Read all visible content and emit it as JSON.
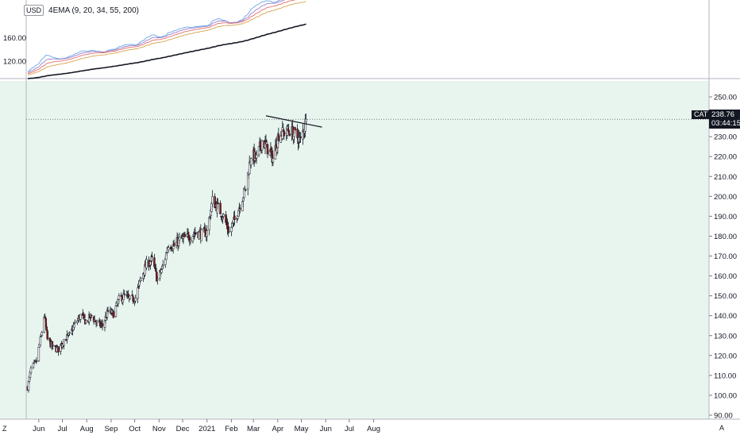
{
  "indicator": {
    "name": "4EMA (9, 20, 34, 55, 200)",
    "currency": "USD",
    "ticks": [
      120,
      160
    ],
    "range": [
      100,
      215
    ]
  },
  "price_tag": {
    "symbol": "CAT",
    "price": "238.76",
    "countdown": "03:44:15"
  },
  "corner_left": "Z",
  "corner_right": "A",
  "colors": {
    "bg_bottom": "#e8f5ef",
    "up_candle": "#ffffff",
    "down_candle": "#8e1b1b",
    "wick": "#131722",
    "ema_colors": [
      "#6aa7e8",
      "#9b7fc9",
      "#e06d6d",
      "#d7a14a",
      "#131722"
    ]
  },
  "chart_data": {
    "type": "candlestick",
    "title": "",
    "ylim": [
      88,
      258
    ],
    "y_ticks": [
      90,
      100,
      110,
      120,
      130,
      140,
      150,
      160,
      170,
      180,
      190,
      200,
      210,
      220,
      230,
      240,
      250
    ],
    "x_labels": [
      "Jun",
      "Jul",
      "Aug",
      "Sep",
      "Oct",
      "Nov",
      "Dec",
      "2021",
      "Feb",
      "Mar",
      "Apr",
      "May",
      "Jun",
      "Jul",
      "Aug"
    ],
    "last_price": 238.76,
    "trendline": {
      "from": [
        "2021-03-17",
        240.5
      ],
      "to": [
        "2021-05-07",
        235.5
      ]
    },
    "close_path": [
      [
        "2020-05-18",
        104
      ],
      [
        "2020-05-22",
        113
      ],
      [
        "2020-05-29",
        117
      ],
      [
        "2020-06-05",
        132
      ],
      [
        "2020-06-08",
        140
      ],
      [
        "2020-06-12",
        128
      ],
      [
        "2020-06-19",
        124
      ],
      [
        "2020-06-26",
        123
      ],
      [
        "2020-07-03",
        128
      ],
      [
        "2020-07-10",
        130
      ],
      [
        "2020-07-17",
        136
      ],
      [
        "2020-07-24",
        140
      ],
      [
        "2020-07-31",
        137
      ],
      [
        "2020-08-07",
        140
      ],
      [
        "2020-08-14",
        136
      ],
      [
        "2020-08-21",
        135
      ],
      [
        "2020-08-28",
        142
      ],
      [
        "2020-09-04",
        141
      ],
      [
        "2020-09-11",
        148
      ],
      [
        "2020-09-18",
        150
      ],
      [
        "2020-09-25",
        148
      ],
      [
        "2020-10-02",
        149
      ],
      [
        "2020-10-09",
        159
      ],
      [
        "2020-10-16",
        166
      ],
      [
        "2020-10-23",
        168
      ],
      [
        "2020-10-30",
        158
      ],
      [
        "2020-11-06",
        165
      ],
      [
        "2020-11-13",
        176
      ],
      [
        "2020-11-20",
        175
      ],
      [
        "2020-11-27",
        178
      ],
      [
        "2020-12-04",
        179
      ],
      [
        "2020-12-11",
        180
      ],
      [
        "2020-12-18",
        182
      ],
      [
        "2020-12-25",
        181
      ],
      [
        "2021-01-01",
        182
      ],
      [
        "2021-01-08",
        198
      ],
      [
        "2021-01-15",
        194
      ],
      [
        "2021-01-22",
        190
      ],
      [
        "2021-01-29",
        182
      ],
      [
        "2021-02-05",
        188
      ],
      [
        "2021-02-12",
        196
      ],
      [
        "2021-02-19",
        204
      ],
      [
        "2021-02-26",
        221
      ],
      [
        "2021-03-05",
        219
      ],
      [
        "2021-03-12",
        228
      ],
      [
        "2021-03-19",
        224
      ],
      [
        "2021-03-26",
        219
      ],
      [
        "2021-04-02",
        231
      ],
      [
        "2021-04-09",
        232
      ],
      [
        "2021-04-16",
        233
      ],
      [
        "2021-04-23",
        231
      ],
      [
        "2021-04-30",
        228
      ],
      [
        "2021-05-07",
        238.76
      ]
    ]
  }
}
